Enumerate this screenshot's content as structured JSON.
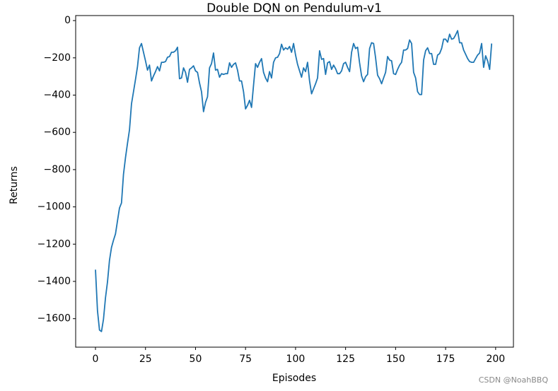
{
  "chart_data": {
    "type": "line",
    "title": "Double DQN on Pendulum-v1",
    "xlabel": "Episodes",
    "ylabel": "Returns",
    "watermark": "CSDN @NoahBBQ",
    "x": [
      0,
      1,
      2,
      3,
      4,
      5,
      6,
      7,
      8,
      9,
      10,
      11,
      12,
      13,
      14,
      15,
      16,
      17,
      18,
      19,
      20,
      21,
      22,
      23,
      24,
      25,
      26,
      27,
      28,
      29,
      30,
      31,
      32,
      33,
      34,
      35,
      36,
      37,
      38,
      39,
      40,
      41,
      42,
      43,
      44,
      45,
      46,
      47,
      48,
      49,
      50,
      51,
      52,
      53,
      54,
      55,
      56,
      57,
      58,
      59,
      60,
      61,
      62,
      63,
      64,
      65,
      66,
      67,
      68,
      69,
      70,
      71,
      72,
      73,
      74,
      75,
      76,
      77,
      78,
      79,
      80,
      81,
      82,
      83,
      84,
      85,
      86,
      87,
      88,
      89,
      90,
      91,
      92,
      93,
      94,
      95,
      96,
      97,
      98,
      99,
      100,
      101,
      102,
      103,
      104,
      105,
      106,
      107,
      108,
      109,
      110,
      111,
      112,
      113,
      114,
      115,
      116,
      117,
      118,
      119,
      120,
      121,
      122,
      123,
      124,
      125,
      126,
      127,
      128,
      129,
      130,
      131,
      132,
      133,
      134,
      135,
      136,
      137,
      138,
      139,
      140,
      141,
      142,
      143,
      144,
      145,
      146,
      147,
      148,
      149,
      150,
      151,
      152,
      153,
      154,
      155,
      156,
      157,
      158,
      159,
      160,
      161,
      162,
      163,
      164,
      165,
      166,
      167,
      168,
      169,
      170,
      171,
      172,
      173,
      174,
      175,
      176,
      177,
      178,
      179,
      180,
      181,
      182,
      183,
      184,
      185,
      186,
      187,
      188,
      189,
      190,
      191,
      192,
      193,
      194,
      195,
      196,
      197,
      198
    ],
    "series": [
      {
        "name": "Returns",
        "color": "#1f77b4",
        "values": [
          -1337,
          -1557,
          -1661,
          -1669,
          -1603,
          -1488,
          -1403,
          -1287,
          -1218,
          -1179,
          -1145,
          -1075,
          -1006,
          -979,
          -825,
          -736,
          -659,
          -586,
          -447,
          -382,
          -316,
          -247,
          -146,
          -123,
          -170,
          -216,
          -266,
          -239,
          -324,
          -297,
          -274,
          -247,
          -270,
          -224,
          -224,
          -220,
          -197,
          -193,
          -170,
          -170,
          -162,
          -143,
          -312,
          -308,
          -254,
          -278,
          -331,
          -262,
          -254,
          -243,
          -270,
          -278,
          -335,
          -382,
          -489,
          -439,
          -409,
          -254,
          -231,
          -174,
          -266,
          -262,
          -304,
          -285,
          -289,
          -285,
          -285,
          -227,
          -251,
          -235,
          -227,
          -266,
          -324,
          -324,
          -382,
          -474,
          -455,
          -428,
          -466,
          -347,
          -231,
          -251,
          -224,
          -204,
          -278,
          -308,
          -328,
          -274,
          -308,
          -224,
          -200,
          -197,
          -177,
          -127,
          -158,
          -146,
          -154,
          -139,
          -170,
          -123,
          -185,
          -235,
          -270,
          -304,
          -254,
          -274,
          -224,
          -324,
          -393,
          -366,
          -339,
          -308,
          -162,
          -208,
          -204,
          -289,
          -227,
          -220,
          -262,
          -239,
          -258,
          -285,
          -285,
          -270,
          -231,
          -224,
          -251,
          -274,
          -170,
          -123,
          -150,
          -143,
          -227,
          -297,
          -328,
          -301,
          -289,
          -150,
          -119,
          -123,
          -200,
          -293,
          -312,
          -339,
          -308,
          -278,
          -193,
          -212,
          -216,
          -285,
          -289,
          -262,
          -239,
          -224,
          -158,
          -158,
          -150,
          -104,
          -123,
          -278,
          -308,
          -382,
          -397,
          -397,
          -212,
          -162,
          -146,
          -177,
          -177,
          -235,
          -235,
          -185,
          -177,
          -150,
          -100,
          -100,
          -116,
          -73,
          -100,
          -96,
          -77,
          -54,
          -119,
          -119,
          -158,
          -181,
          -204,
          -220,
          -224,
          -224,
          -204,
          -185,
          -174,
          -123,
          -251,
          -189,
          -216,
          -262,
          -123
        ]
      }
    ],
    "xlim": [
      -9.9,
      208.9
    ],
    "xticks": [
      0,
      25,
      50,
      75,
      100,
      125,
      150,
      175,
      200
    ],
    "ylim": [
      -1753,
      27
    ],
    "yticks": [
      {
        "value": -1600,
        "label": "−1600"
      },
      {
        "value": -1400,
        "label": "−1400"
      },
      {
        "value": -1200,
        "label": "−1200"
      },
      {
        "value": -1000,
        "label": "−1000"
      },
      {
        "value": -800,
        "label": "−800"
      },
      {
        "value": -600,
        "label": "−600"
      },
      {
        "value": -400,
        "label": "−400"
      },
      {
        "value": -200,
        "label": "−200"
      },
      0
    ],
    "grid": false
  }
}
